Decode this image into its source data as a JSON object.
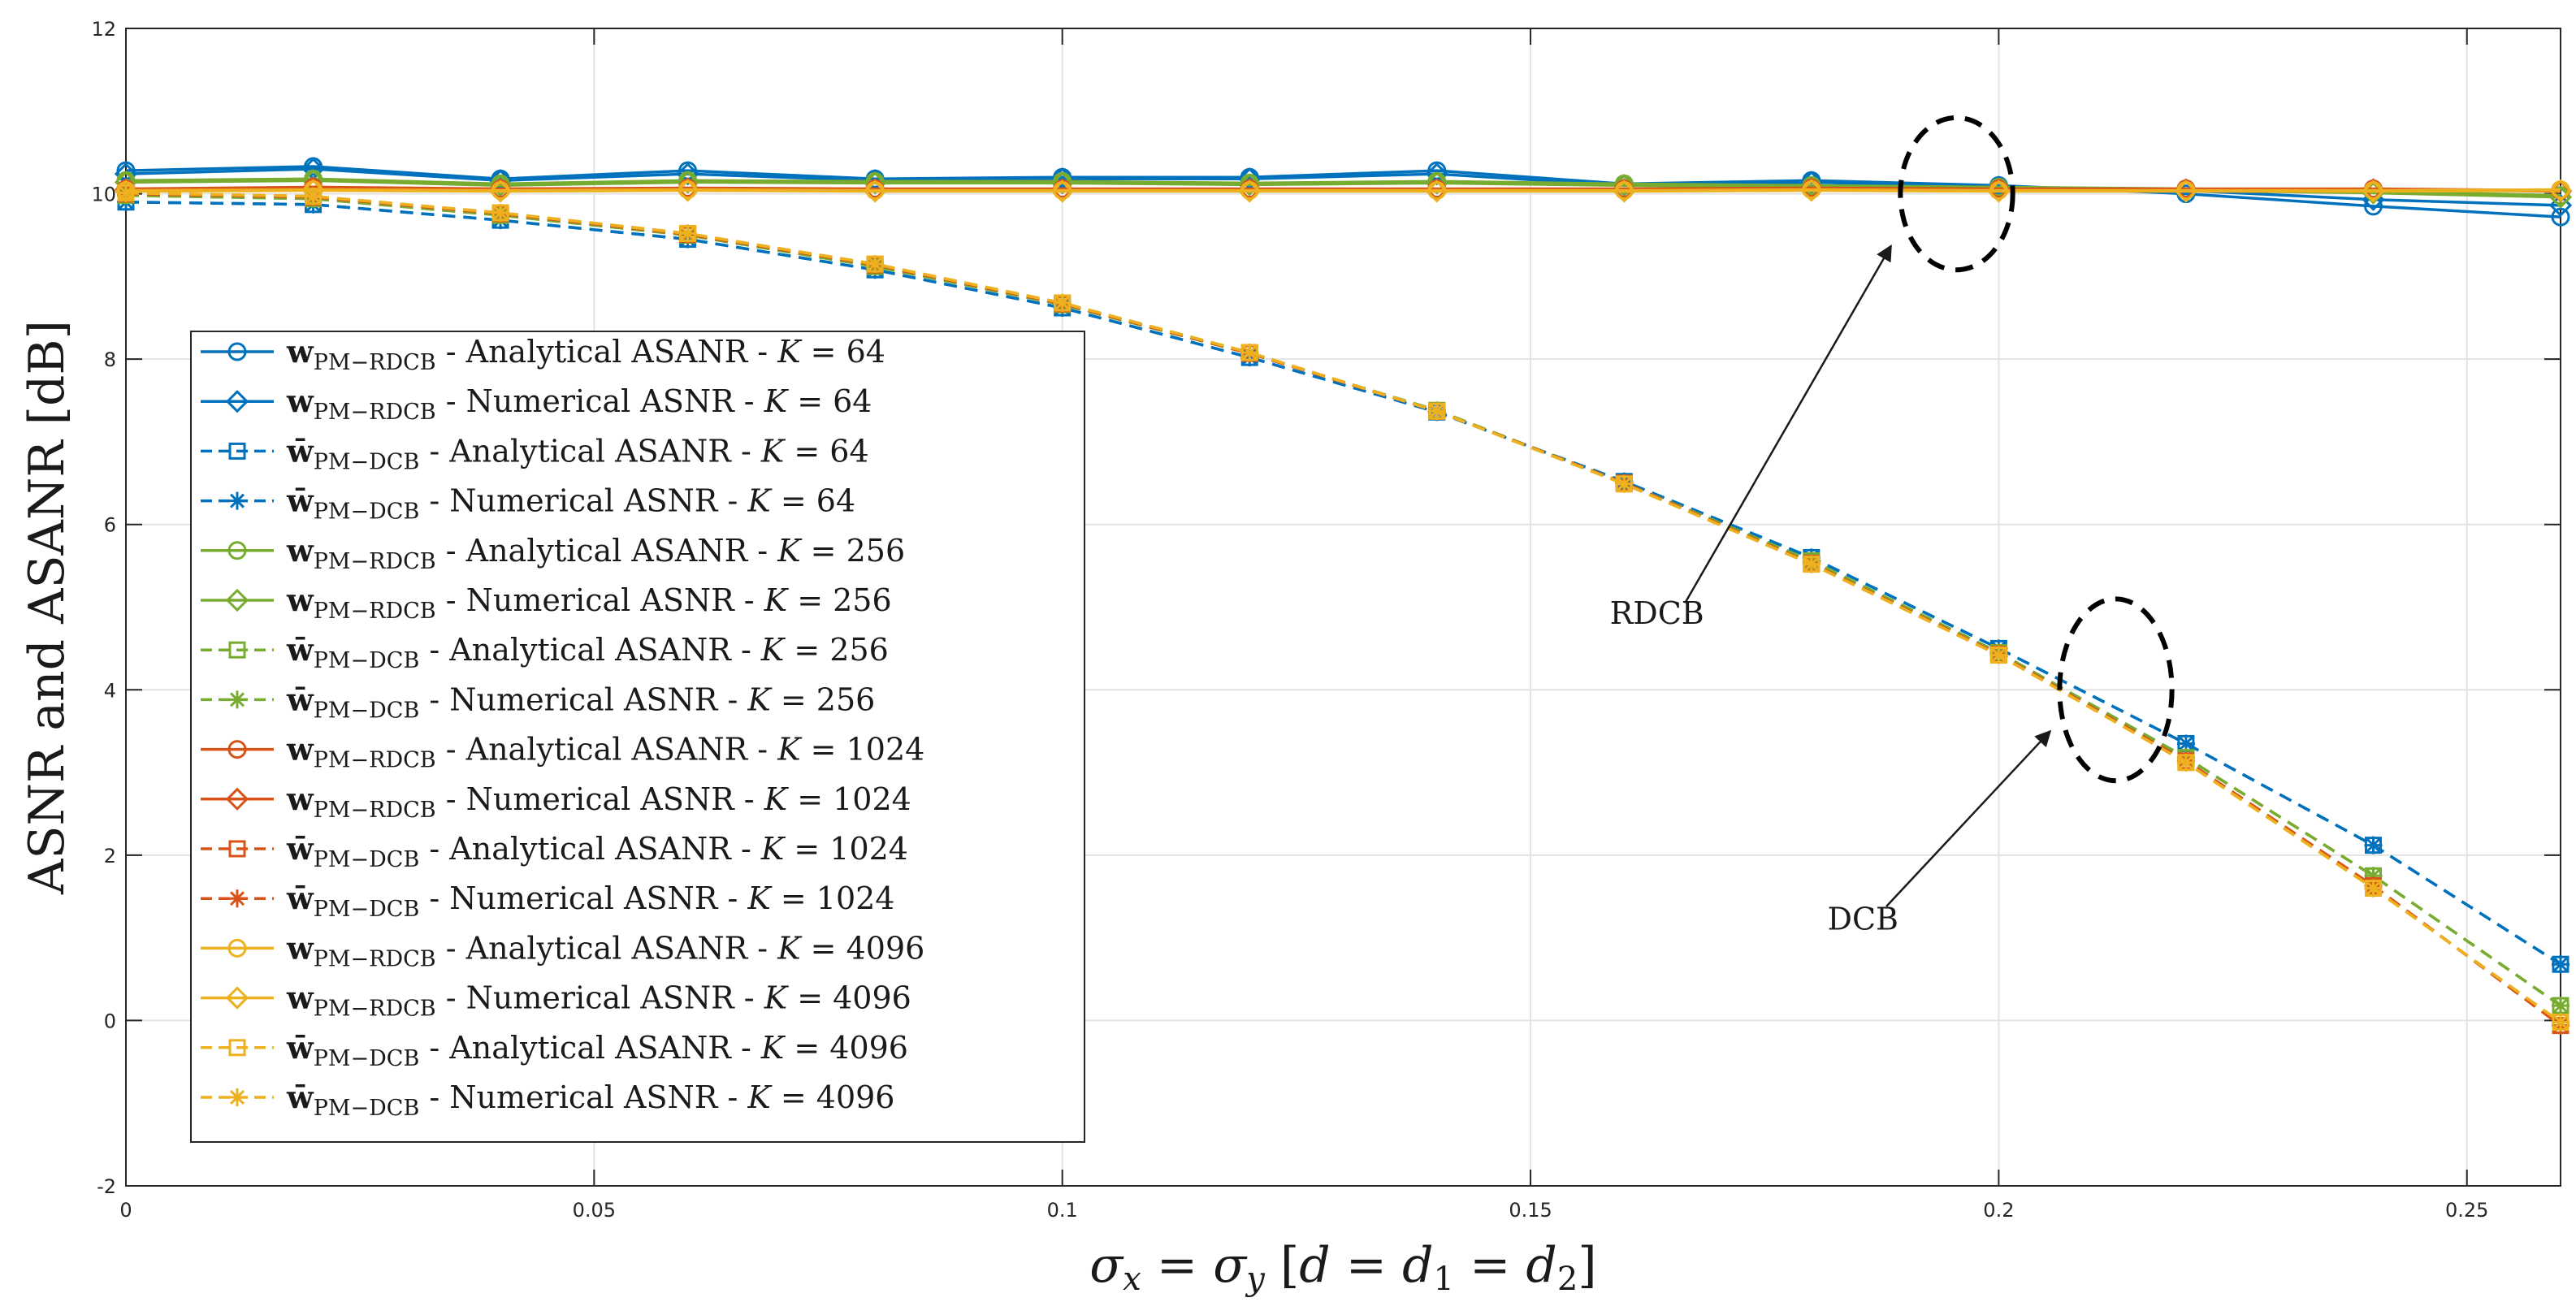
{
  "chart_data": {
    "type": "line",
    "title": "",
    "xlabel": "σx = σy [d = d1 = d2]",
    "ylabel": "ASNR and ASANR [dB]",
    "xlim": [
      0,
      0.26
    ],
    "ylim": [
      -2,
      12
    ],
    "grid": true,
    "legend_position": "left",
    "x": [
      0,
      0.02,
      0.04,
      0.06,
      0.08,
      0.1,
      0.12,
      0.14,
      0.16,
      0.18,
      0.2,
      0.22,
      0.24,
      0.26
    ],
    "xticks": [
      0,
      0.05,
      0.1,
      0.15,
      0.2,
      0.25
    ],
    "xtick_labels": [
      "0",
      "0.05",
      "0.1",
      "0.15",
      "0.2",
      "0.25"
    ],
    "yticks": [
      -2,
      0,
      2,
      4,
      6,
      8,
      10,
      12
    ],
    "ytick_labels": [
      "-2",
      "0",
      "2",
      "4",
      "6",
      "8",
      "10",
      "12"
    ],
    "series": [
      {
        "name": "wPM−RDCB - Analytical ASANR - K = 64",
        "w": "w",
        "bar": false,
        "sub": "PM−RDCB",
        "mid": " - Analytical ASANR - ",
        "kval": " = 64",
        "color": "#0072BD",
        "dash": "solid",
        "marker": "circle",
        "values": [
          10.28,
          10.33,
          10.18,
          10.28,
          10.18,
          10.2,
          10.2,
          10.28,
          10.12,
          10.16,
          10.1,
          10.0,
          9.85,
          9.72
        ]
      },
      {
        "name": "wPM−RDCB - Numerical ASNR - K = 64",
        "w": "w",
        "bar": false,
        "sub": "PM−RDCB",
        "mid": " - Numerical ASNR - ",
        "kval": " = 64",
        "color": "#0072BD",
        "dash": "solid",
        "marker": "diamond",
        "values": [
          10.24,
          10.3,
          10.16,
          10.24,
          10.16,
          10.18,
          10.18,
          10.24,
          10.1,
          10.14,
          10.08,
          10.04,
          9.93,
          9.86
        ]
      },
      {
        "name": "w̄PM−DCB - Analytical ASANR - K = 64",
        "w": "w",
        "bar": true,
        "sub": "PM−DCB",
        "mid": " - Analytical ASANR - ",
        "kval": " = 64",
        "color": "#0072BD",
        "dash": "dashed",
        "marker": "square",
        "values": [
          9.9,
          9.87,
          9.68,
          9.45,
          9.08,
          8.62,
          8.02,
          7.36,
          6.52,
          5.6,
          4.5,
          3.35,
          2.12,
          0.68
        ]
      },
      {
        "name": "w̄PM−DCB - Numerical ASNR - K = 64",
        "w": "w",
        "bar": true,
        "sub": "PM−DCB",
        "mid": " - Numerical ASNR - ",
        "kval": " = 64",
        "color": "#0072BD",
        "dash": "dashed",
        "marker": "star",
        "values": [
          9.9,
          9.87,
          9.68,
          9.45,
          9.08,
          8.62,
          8.02,
          7.36,
          6.52,
          5.6,
          4.5,
          3.35,
          2.12,
          0.68
        ]
      },
      {
        "name": "wPM−RDCB - Analytical ASANR - K = 256",
        "w": "w",
        "bar": false,
        "sub": "PM−RDCB",
        "mid": " - Analytical ASANR - ",
        "kval": " = 256",
        "color": "#77AC30",
        "dash": "solid",
        "marker": "circle",
        "values": [
          10.16,
          10.18,
          10.12,
          10.16,
          10.15,
          10.15,
          10.13,
          10.15,
          10.12,
          10.1,
          10.08,
          10.06,
          10.03,
          9.98
        ]
      },
      {
        "name": "wPM−RDCB - Numerical ASNR - K = 256",
        "w": "w",
        "bar": false,
        "sub": "PM−RDCB",
        "mid": " - Numerical ASNR - ",
        "kval": " = 256",
        "color": "#77AC30",
        "dash": "solid",
        "marker": "diamond",
        "values": [
          10.14,
          10.16,
          10.1,
          10.14,
          10.13,
          10.13,
          10.11,
          10.13,
          10.1,
          10.08,
          10.06,
          10.04,
          10.01,
          9.96
        ]
      },
      {
        "name": "w̄PM−DCB - Analytical ASANR - K = 256",
        "w": "w",
        "bar": true,
        "sub": "PM−DCB",
        "mid": " - Analytical ASANR - ",
        "kval": " = 256",
        "color": "#77AC30",
        "dash": "dashed",
        "marker": "square",
        "values": [
          9.98,
          9.94,
          9.74,
          9.5,
          9.12,
          8.66,
          8.07,
          7.38,
          6.5,
          5.56,
          4.45,
          3.18,
          1.75,
          0.18
        ]
      },
      {
        "name": "w̄PM−DCB - Numerical ASNR - K = 256",
        "w": "w",
        "bar": true,
        "sub": "PM−DCB",
        "mid": " - Numerical ASNR - ",
        "kval": " = 256",
        "color": "#77AC30",
        "dash": "dashed",
        "marker": "star",
        "values": [
          9.98,
          9.94,
          9.74,
          9.5,
          9.12,
          8.66,
          8.07,
          7.38,
          6.5,
          5.56,
          4.45,
          3.18,
          1.75,
          0.18
        ]
      },
      {
        "name": "wPM−RDCB - Analytical ASANR - K = 1024",
        "w": "w",
        "bar": false,
        "sub": "PM−RDCB",
        "mid": " - Analytical ASANR - ",
        "kval": " = 1024",
        "color": "#D95319",
        "dash": "solid",
        "marker": "circle",
        "values": [
          10.06,
          10.08,
          10.06,
          10.07,
          10.06,
          10.06,
          10.06,
          10.06,
          10.06,
          10.07,
          10.06,
          10.06,
          10.06,
          10.04
        ]
      },
      {
        "name": "wPM−RDCB - Numerical ASNR - K = 1024",
        "w": "w",
        "bar": false,
        "sub": "PM−RDCB",
        "mid": " - Numerical ASNR - ",
        "kval": " = 1024",
        "color": "#D95319",
        "dash": "solid",
        "marker": "diamond",
        "values": [
          10.05,
          10.07,
          10.05,
          10.06,
          10.05,
          10.05,
          10.05,
          10.05,
          10.05,
          10.06,
          10.05,
          10.05,
          10.05,
          10.03
        ]
      },
      {
        "name": "w̄PM−DCB - Analytical ASANR - K = 1024",
        "w": "w",
        "bar": true,
        "sub": "PM−DCB",
        "mid": " - Analytical ASANR - ",
        "kval": " = 1024",
        "color": "#D95319",
        "dash": "dashed",
        "marker": "square",
        "values": [
          10.0,
          9.96,
          9.76,
          9.51,
          9.14,
          8.67,
          8.07,
          7.37,
          6.5,
          5.53,
          4.43,
          3.14,
          1.63,
          -0.06
        ]
      },
      {
        "name": "w̄PM−DCB - Numerical ASNR - K = 1024",
        "w": "w",
        "bar": true,
        "sub": "PM−DCB",
        "mid": " - Numerical ASNR - ",
        "kval": " = 1024",
        "color": "#D95319",
        "dash": "dashed",
        "marker": "star",
        "values": [
          10.0,
          9.96,
          9.76,
          9.51,
          9.14,
          8.67,
          8.07,
          7.37,
          6.5,
          5.53,
          4.43,
          3.14,
          1.63,
          -0.06
        ]
      },
      {
        "name": "wPM−RDCB - Analytical ASANR - K = 4096",
        "w": "w",
        "bar": false,
        "sub": "PM−RDCB",
        "mid": " - Analytical ASANR - ",
        "kval": " = 4096",
        "color": "#EDB120",
        "dash": "solid",
        "marker": "circle",
        "values": [
          10.04,
          10.05,
          10.04,
          10.05,
          10.04,
          10.04,
          10.04,
          10.04,
          10.04,
          10.05,
          10.04,
          10.04,
          10.04,
          10.05
        ]
      },
      {
        "name": "wPM−RDCB - Numerical ASNR - K = 4096",
        "w": "w",
        "bar": false,
        "sub": "PM−RDCB",
        "mid": " - Numerical ASNR - ",
        "kval": " = 4096",
        "color": "#EDB120",
        "dash": "solid",
        "marker": "diamond",
        "values": [
          10.03,
          10.04,
          10.03,
          10.04,
          10.03,
          10.03,
          10.03,
          10.03,
          10.03,
          10.04,
          10.03,
          10.03,
          10.03,
          10.04
        ]
      },
      {
        "name": "w̄PM−DCB - Analytical ASANR - K = 4096",
        "w": "w",
        "bar": true,
        "sub": "PM−DCB",
        "mid": " - Analytical ASANR - ",
        "kval": " = 4096",
        "color": "#EDB120",
        "dash": "dashed",
        "marker": "square",
        "values": [
          10.01,
          9.97,
          9.77,
          9.52,
          9.15,
          8.68,
          8.08,
          7.37,
          6.49,
          5.52,
          4.42,
          3.12,
          1.6,
          -0.02
        ]
      },
      {
        "name": "w̄PM−DCB - Numerical ASNR - K = 4096",
        "w": "w",
        "bar": true,
        "sub": "PM−DCB",
        "mid": " - Numerical ASNR - ",
        "kval": " = 4096",
        "color": "#EDB120",
        "dash": "dashed",
        "marker": "star",
        "values": [
          10.01,
          9.97,
          9.77,
          9.52,
          9.15,
          8.68,
          8.08,
          7.37,
          6.49,
          5.52,
          4.42,
          3.12,
          1.6,
          -0.02
        ]
      }
    ],
    "annotations": [
      {
        "text": "RDCB",
        "ellipse_center": [
          0.1955,
          10.0
        ],
        "ellipse_radii": [
          0.006,
          0.92
        ],
        "label_at": [
          0.1635,
          4.8
        ],
        "arrow_from": [
          0.1665,
          5.05
        ],
        "arrow_to": [
          0.1885,
          9.37
        ]
      },
      {
        "text": "DCB",
        "ellipse_center": [
          0.2125,
          4.0
        ],
        "ellipse_radii": [
          0.006,
          1.1
        ],
        "label_at": [
          0.1855,
          1.1
        ],
        "arrow_from": [
          0.188,
          1.38
        ],
        "arrow_to": [
          0.2055,
          3.5
        ]
      }
    ]
  }
}
